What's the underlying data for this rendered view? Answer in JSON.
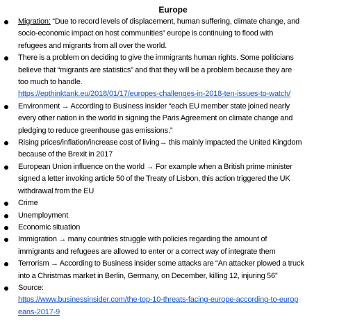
{
  "title": "Europe",
  "link_color": "#1155cc",
  "items": [
    {
      "label": "Migration:",
      "lines": [
        " “Due to record levels of displacement, human suffering, climate change, and",
        "socio-economic impact on host communities” europe is continuing to flood with",
        "refugees and migrants from all over the world."
      ]
    },
    {
      "lines": [
        "There is a problem on deciding to give the immigrants human rights. Some politicians",
        "believe that “migrants are statistics” and that they will be a problem because they are",
        "too much to handle."
      ],
      "link": "https://epthinktank.eu/2018/01/17/europes-challenges-in-2018-ten-issues-to-watch/"
    },
    {
      "lines": [
        "Environment → According to Business insider “each EU member state joined nearly",
        "every other nation in the world in signing the Paris Agreement on climate change and",
        "pledging to reduce greenhouse gas emissions.”"
      ]
    },
    {
      "lines": [
        "Rising prices/inflation/increase cost of living→ this mainly impacted the United Kingdom",
        "because of the Brexit in 2017"
      ]
    },
    {
      "lines": [
        "European Union influence on the world → For example when a British prime minister",
        "signed a letter invoking article 50 of the Treaty of Lisbon, this action triggered the UK",
        "withdrawal from the EU"
      ]
    },
    {
      "lines": [
        "Crime"
      ]
    },
    {
      "lines": [
        "Unemployment"
      ]
    },
    {
      "lines": [
        "Economic situation"
      ]
    },
    {
      "lines": [
        "Immigration → many countries struggle with policies regarding the amount of",
        "immigrants and refugees are allowed to enter or a correct way of integrate them"
      ]
    },
    {
      "lines": [
        "Terrorism → According to Business insider some attacks are “An attacker plowed a truck",
        "into a Christmas market in Berlin, Germany, on December, killing 12, injuring 56”"
      ]
    },
    {
      "lines": [
        "Source:"
      ],
      "link_lines": [
        "https://www.businessinsider.com/the-top-10-threats-facing-europe-according-to-europ",
        "eans-2017-9"
      ],
      "link": "https://www.businessinsider.com/the-top-10-threats-facing-europe-according-to-europeans-2017-9"
    }
  ]
}
